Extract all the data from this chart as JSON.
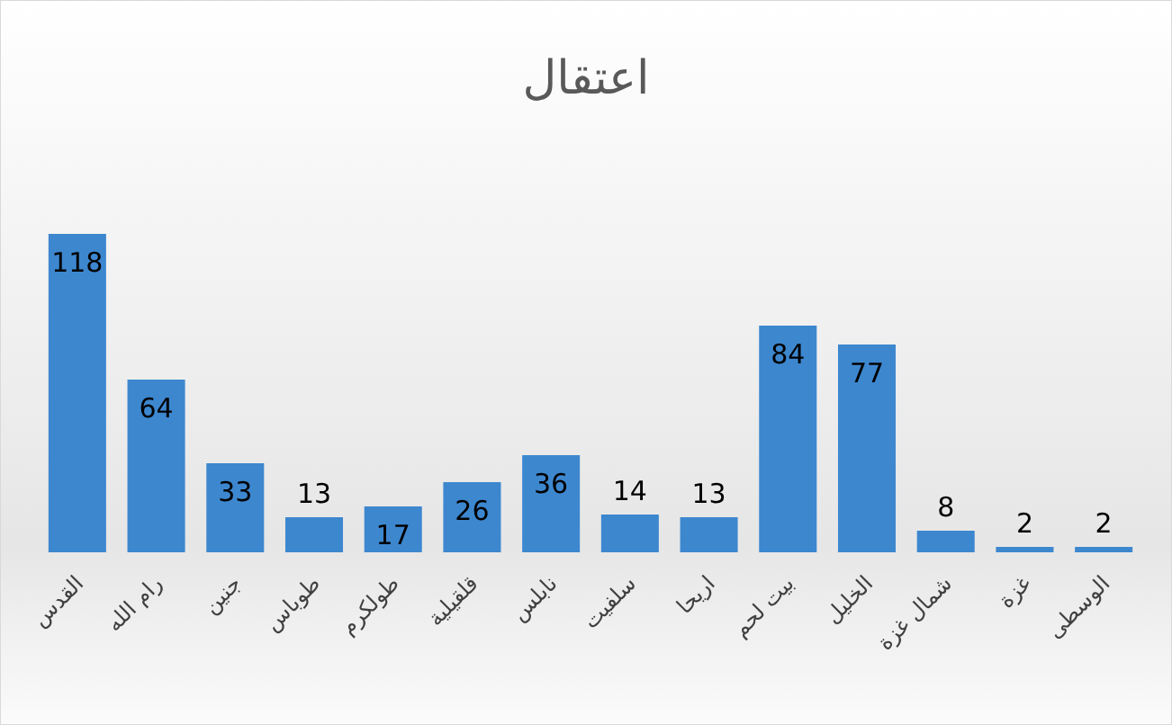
{
  "chart_data": {
    "type": "bar",
    "title": "اعتقال",
    "categories": [
      "القدس",
      "رام الله",
      "جنين",
      "طوباس",
      "طولكرم",
      "قلقيلية",
      "نابلس",
      "سلفيت",
      "اريحا",
      "بيت لحم",
      "الخليل",
      "شمال غزة",
      "غزة",
      "الوسطى"
    ],
    "values": [
      118,
      64,
      33,
      13,
      17,
      26,
      36,
      14,
      13,
      84,
      77,
      8,
      2,
      2
    ],
    "color": "#3d87cf",
    "data_labels": true
  }
}
